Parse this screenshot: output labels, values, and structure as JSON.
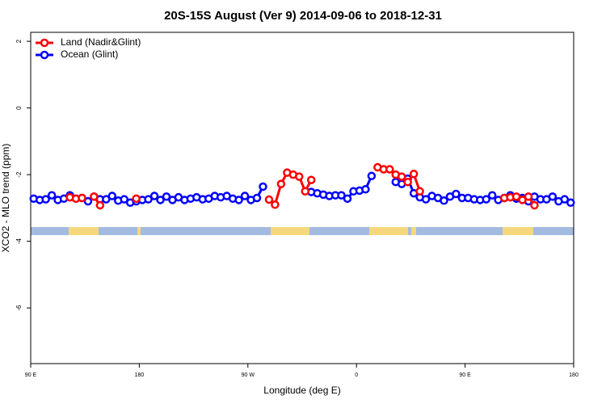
{
  "chart_data": {
    "type": "line",
    "title": "20S-15S August (Ver 9)   2014-09-06 to 2018-12-31",
    "x_label": "Longitude (deg E)",
    "y_label": "XCO2 - MLO trend (ppm)",
    "legend": "top-left",
    "xlim": [
      90,
      540
    ],
    "xticks": [
      {
        "value": 90,
        "label": "90 E"
      },
      {
        "value": 180,
        "label": "180"
      },
      {
        "value": 270,
        "label": "90 W"
      },
      {
        "value": 360,
        "label": "0"
      },
      {
        "value": 450,
        "label": "90 E"
      },
      {
        "value": 540,
        "label": "180"
      }
    ],
    "ylim": [
      -7.67,
      2.27
    ],
    "yticks": [
      2,
      0,
      -2,
      -4,
      -6
    ],
    "x": [
      92.5,
      97.5,
      102.5,
      107.5,
      112.5,
      117.5,
      122.5,
      127.5,
      132.5,
      137.5,
      142.5,
      147.5,
      152.5,
      157.5,
      162.5,
      167.5,
      172.5,
      177.5,
      182.5,
      187.5,
      192.5,
      197.5,
      202.5,
      207.5,
      212.5,
      217.5,
      222.5,
      227.5,
      232.5,
      237.5,
      242.5,
      247.5,
      252.5,
      257.5,
      262.5,
      267.5,
      272.5,
      277.5,
      282.5,
      287.5,
      292.5,
      297.5,
      302.5,
      307.5,
      312.5,
      317.5,
      322.5,
      327.5,
      332.5,
      337.5,
      342.5,
      347.5,
      352.5,
      357.5,
      362.5,
      367.5,
      372.5,
      377.5,
      382.5,
      387.5,
      392.5,
      397.5,
      402.5,
      407.5,
      412.5,
      417.5,
      422.5,
      427.5,
      432.5,
      437.5,
      442.5,
      447.5,
      452.5,
      457.5,
      462.5,
      467.5,
      472.5,
      477.5,
      482.5,
      487.5,
      492.5,
      497.5,
      502.5,
      507.5,
      512.5,
      517.5,
      522.5,
      527.5,
      532.5,
      537.5
    ],
    "series": [
      {
        "name": "Ocean (Glint)",
        "color": "#0000ff",
        "values": [
          -2.72,
          -2.76,
          -2.74,
          -2.62,
          -2.76,
          -2.72,
          -2.62,
          -2.72,
          -2.7,
          -2.8,
          -2.66,
          -2.74,
          -2.74,
          -2.64,
          -2.78,
          -2.74,
          -2.84,
          -2.8,
          -2.76,
          -2.74,
          -2.64,
          -2.76,
          -2.66,
          -2.76,
          -2.68,
          -2.76,
          -2.72,
          -2.68,
          -2.74,
          -2.72,
          -2.64,
          -2.68,
          -2.64,
          -2.72,
          -2.76,
          -2.64,
          -2.76,
          -2.7,
          -2.36,
          null,
          null,
          null,
          null,
          null,
          null,
          null,
          -2.52,
          -2.56,
          -2.6,
          -2.64,
          -2.62,
          -2.62,
          -2.72,
          -2.5,
          -2.48,
          -2.44,
          -2.04,
          null,
          null,
          null,
          -2.22,
          -2.28,
          -2.12,
          -2.56,
          -2.68,
          -2.74,
          -2.64,
          -2.7,
          -2.78,
          -2.66,
          -2.58,
          -2.7,
          -2.7,
          -2.74,
          -2.76,
          -2.74,
          -2.62,
          -2.76,
          -2.7,
          -2.62,
          -2.72,
          -2.7,
          -2.8,
          -2.66,
          -2.74,
          -2.74,
          -2.66,
          -2.8,
          -2.74,
          -2.84
        ]
      },
      {
        "name": "Land (Nadir&Glint)",
        "color": "#ff0000",
        "values": [
          null,
          null,
          null,
          null,
          null,
          null,
          -2.68,
          -2.72,
          -2.7,
          null,
          -2.66,
          -2.92,
          null,
          null,
          null,
          null,
          null,
          -2.72,
          null,
          null,
          null,
          null,
          null,
          null,
          null,
          null,
          null,
          null,
          null,
          null,
          null,
          null,
          null,
          null,
          null,
          null,
          null,
          null,
          null,
          -2.75,
          -2.9,
          -2.28,
          -1.94,
          -2.0,
          -2.06,
          -2.5,
          -2.16,
          null,
          null,
          null,
          null,
          null,
          null,
          null,
          null,
          null,
          null,
          -1.78,
          -1.84,
          -1.84,
          -2.0,
          -2.06,
          -2.22,
          -1.98,
          -2.5,
          null,
          null,
          null,
          null,
          null,
          null,
          null,
          null,
          null,
          null,
          null,
          null,
          null,
          -2.7,
          -2.68,
          -2.66,
          -2.76,
          -2.66,
          -2.92,
          null,
          null,
          null,
          null,
          null,
          null
        ]
      }
    ]
  }
}
